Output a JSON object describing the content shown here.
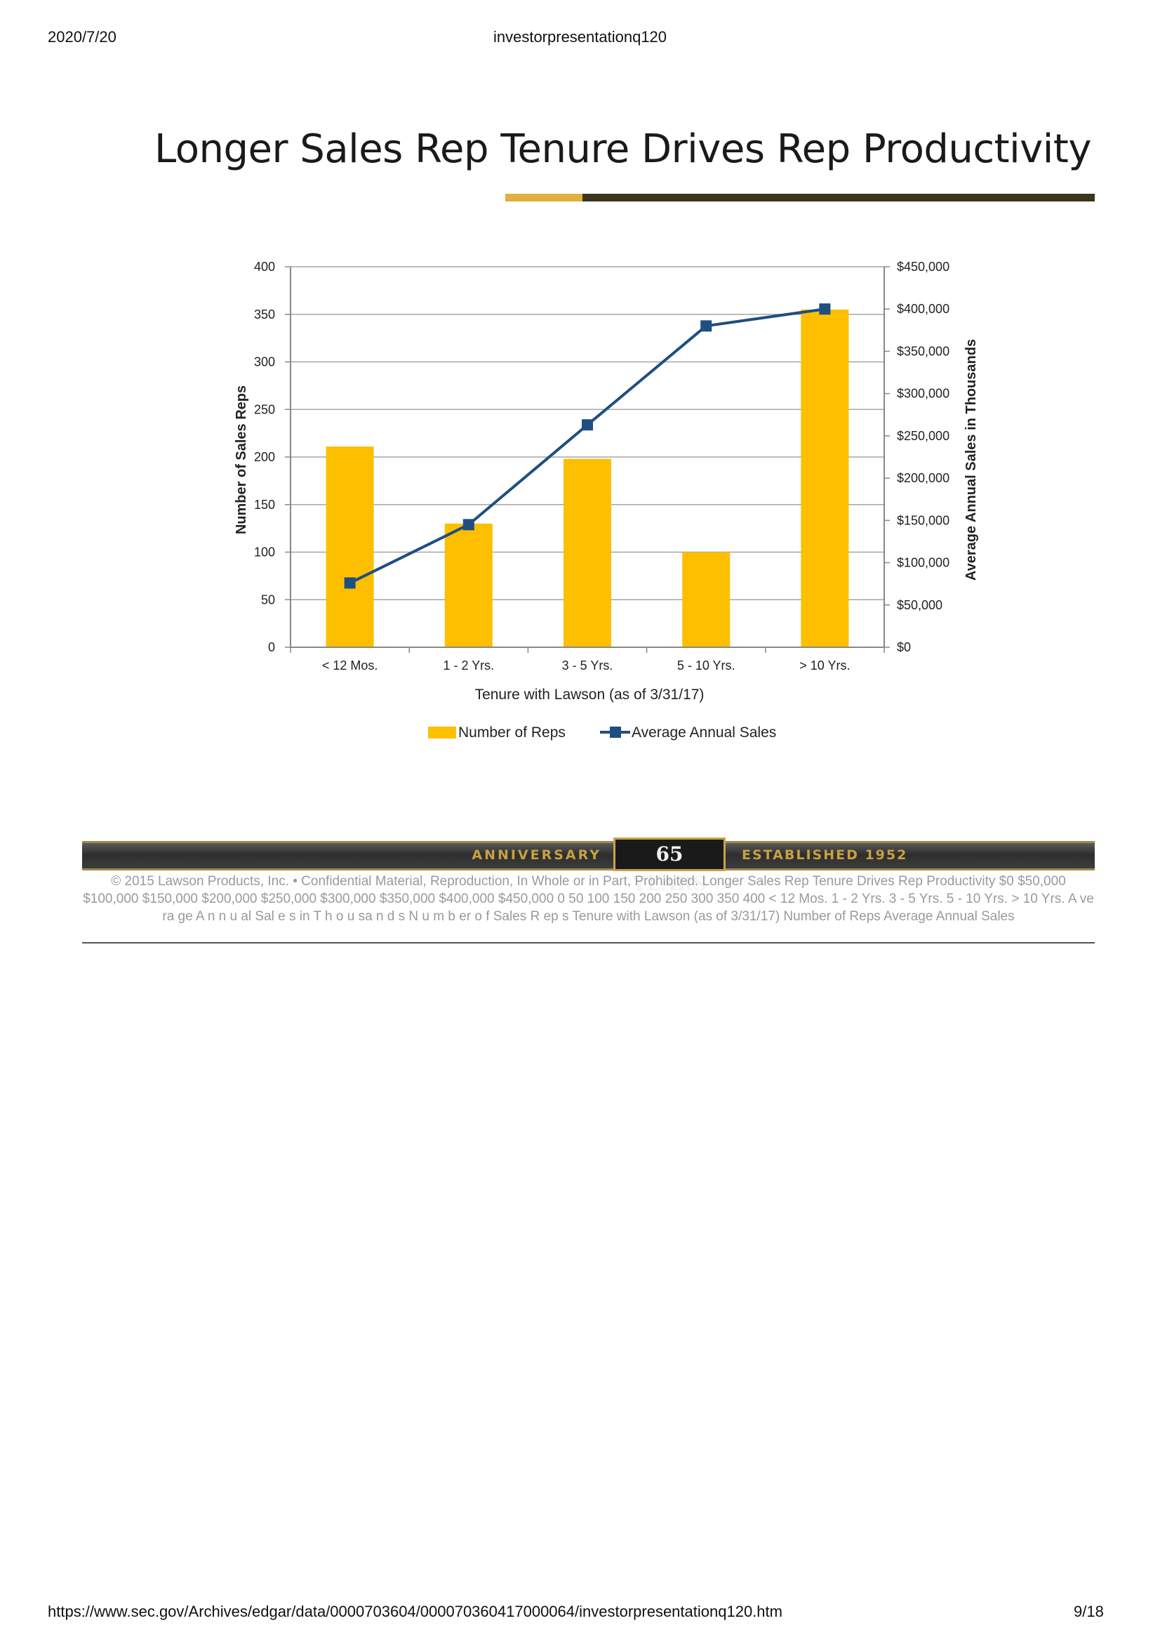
{
  "browser": {
    "date": "2020/7/20",
    "doc_title": "investorpresentationq120",
    "url": "https://www.sec.gov/Archives/edgar/data/0000703604/000070360417000064/investorpresentationq120.htm",
    "page": "9/18"
  },
  "slide": {
    "title": "Longer Sales Rep Tenure Drives Rep Productivity",
    "accent_colors": [
      "#e0b040",
      "#3b351d"
    ]
  },
  "chart_data": {
    "type": "bar",
    "categories": [
      "< 12 Mos.",
      "1 - 2 Yrs.",
      "3 - 5 Yrs.",
      "5 - 10 Yrs.",
      "> 10 Yrs."
    ],
    "series": [
      {
        "name": "Number of Reps",
        "kind": "bar",
        "axis": "left",
        "color": "#fdbf00",
        "values": [
          211,
          130,
          198,
          100,
          355
        ]
      },
      {
        "name": "Average Annual Sales",
        "kind": "line",
        "axis": "right",
        "color": "#1f4e82",
        "values": [
          76000,
          145000,
          263000,
          380000,
          400000
        ]
      }
    ],
    "xlabel": "Tenure with Lawson (as of 3/31/17)",
    "ylabel": "Number of Sales Reps",
    "y2label": "Average Annual Sales in Thousands",
    "ylim": [
      0,
      400
    ],
    "yticks": [
      "0",
      "50",
      "100",
      "150",
      "200",
      "250",
      "300",
      "350",
      "400"
    ],
    "y2lim": [
      0,
      450000
    ],
    "y2ticks": [
      "$0",
      "$50,000",
      "$100,000",
      "$150,000",
      "$200,000",
      "$250,000",
      "$300,000",
      "$350,000",
      "$400,000",
      "$450,000"
    ],
    "grid": true,
    "legend_position": "bottom"
  },
  "banner": {
    "anniversary": "ANNIVERSARY",
    "years": "65 YEARS",
    "established": "ESTABLISHED 1952"
  },
  "footer": {
    "text": "© 2015 Lawson Products, Inc. • Confidential Material, Reproduction, In Whole or in Part, Prohibited.  Longer Sales Rep Tenure Drives Rep Productivity   $0 $50,000 $100,000 $150,000 $200,000 $250,000 $300,000 $350,000 $400,000 $450,000 0 50 100 150 200 250 300 350 400 < 12 Mos. 1 - 2 Yrs. 3 - 5 Yrs. 5 - 10 Yrs. > 10 Yrs. A ve ra ge A n n u al Sal e s  in T h o u sa n d s  N u m b er o f  Sales R ep s  Tenure with Lawson (as of 3/31/17)  Number of Reps Average Annual Sales"
  }
}
